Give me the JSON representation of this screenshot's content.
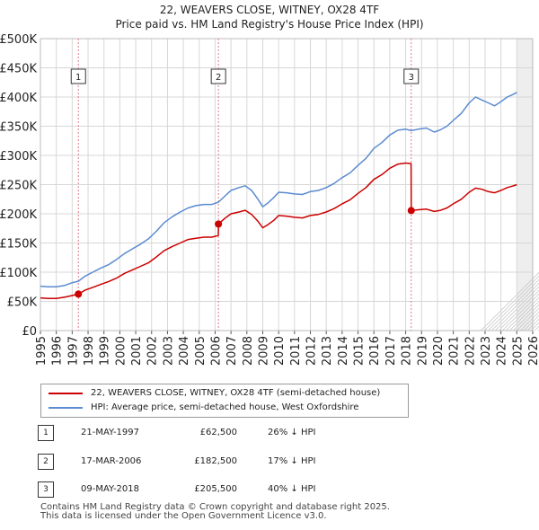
{
  "title": {
    "line1": "22, WEAVERS CLOSE, WITNEY, OX28 4TF",
    "line2": "Price paid vs. HM Land Registry's House Price Index (HPI)"
  },
  "legend": {
    "property_label": "22, WEAVERS CLOSE, WITNEY, OX28 4TF (semi-detached house)",
    "hpi_label": "HPI: Average price, semi-detached house, West Oxfordshire"
  },
  "transactions": [
    {
      "num": "1",
      "date": "21-MAY-1997",
      "price": "£62,500",
      "hpi_diff": "26% ↓ HPI"
    },
    {
      "num": "2",
      "date": "17-MAR-2006",
      "price": "£182,500",
      "hpi_diff": "17% ↓ HPI"
    },
    {
      "num": "3",
      "date": "09-MAY-2018",
      "price": "£205,500",
      "hpi_diff": "40% ↓ HPI"
    }
  ],
  "footer": {
    "line1": "Contains HM Land Registry data © Crown copyright and database right 2025.",
    "line2": "This data is licensed under the Open Government Licence v3.0."
  },
  "chart_data": {
    "type": "line",
    "title": "Price paid vs. HM Land Registry's House Price Index (HPI)",
    "xlabel": "",
    "ylabel": "",
    "xlim": [
      1995,
      2026
    ],
    "ylim": [
      0,
      500000
    ],
    "grid": true,
    "x_ticks": [
      "1995",
      "1996",
      "1997",
      "1998",
      "1999",
      "2000",
      "2001",
      "2002",
      "2003",
      "2004",
      "2005",
      "2006",
      "2007",
      "2008",
      "2009",
      "2010",
      "2011",
      "2012",
      "2013",
      "2014",
      "2015",
      "2016",
      "2017",
      "2018",
      "2019",
      "2020",
      "2021",
      "2022",
      "2023",
      "2024",
      "2025",
      "2026"
    ],
    "y_ticks": [
      {
        "value": 0,
        "label": "£0"
      },
      {
        "value": 50000,
        "label": "£50K"
      },
      {
        "value": 100000,
        "label": "£100K"
      },
      {
        "value": 150000,
        "label": "£150K"
      },
      {
        "value": 200000,
        "label": "£200K"
      },
      {
        "value": 250000,
        "label": "£250K"
      },
      {
        "value": 300000,
        "label": "£300K"
      },
      {
        "value": 350000,
        "label": "£350K"
      },
      {
        "value": 400000,
        "label": "£400K"
      },
      {
        "value": 450000,
        "label": "£450K"
      },
      {
        "value": 500000,
        "label": "£500K"
      }
    ],
    "forecast_start": 2025.0,
    "colors": {
      "property": "#cc0000",
      "hpi": "#5b8bd0",
      "marker_line": "#e07a8a",
      "grid": "#d7d7d7",
      "forecast": "#bbbbbb"
    },
    "transactions": [
      {
        "label": "1",
        "x": 1997.39,
        "y": 62500
      },
      {
        "label": "2",
        "x": 2006.21,
        "y": 182500
      },
      {
        "label": "3",
        "x": 2018.35,
        "y": 205500
      }
    ],
    "series": [
      {
        "name": "HPI: Average price, semi-detached house, West Oxfordshire",
        "x": [
          1995.0,
          1995.5,
          1996.0,
          1996.5,
          1997.0,
          1997.39,
          1997.8,
          1998.3,
          1998.8,
          1999.3,
          1999.8,
          2000.3,
          2000.8,
          2001.3,
          2001.8,
          2002.3,
          2002.8,
          2003.3,
          2003.8,
          2004.3,
          2004.8,
          2005.3,
          2005.8,
          2006.21,
          2006.6,
          2007.0,
          2007.5,
          2007.9,
          2008.3,
          2008.7,
          2009.0,
          2009.3,
          2009.7,
          2010.0,
          2010.5,
          2011.0,
          2011.5,
          2012.0,
          2012.5,
          2013.0,
          2013.5,
          2014.0,
          2014.5,
          2015.0,
          2015.5,
          2016.0,
          2016.5,
          2017.0,
          2017.5,
          2018.0,
          2018.35,
          2018.8,
          2019.3,
          2019.8,
          2020.2,
          2020.6,
          2021.0,
          2021.5,
          2022.0,
          2022.4,
          2022.8,
          2023.2,
          2023.6,
          2024.0,
          2024.4,
          2024.8,
          2025.0
        ],
        "y": [
          76000,
          75000,
          75000,
          77000,
          82000,
          84500,
          93000,
          100000,
          107000,
          113000,
          122000,
          132000,
          140000,
          148000,
          157000,
          170000,
          185000,
          195000,
          203000,
          210000,
          214000,
          216000,
          216000,
          220000,
          230000,
          240000,
          245000,
          248000,
          240000,
          225000,
          212000,
          218000,
          228000,
          237000,
          236000,
          234000,
          233000,
          238000,
          240000,
          245000,
          252000,
          262000,
          270000,
          283000,
          295000,
          312000,
          322000,
          335000,
          343000,
          345000,
          342500,
          345000,
          347000,
          340000,
          344000,
          350000,
          360000,
          372000,
          390000,
          400000,
          395000,
          390000,
          385000,
          392000,
          400000,
          405000,
          408000
        ]
      },
      {
        "name": "22, WEAVERS CLOSE, WITNEY, OX28 4TF (semi-detached house)",
        "x": [
          1995.0,
          1995.5,
          1996.0,
          1996.5,
          1997.0,
          1997.39,
          1997.8,
          1998.3,
          1998.8,
          1999.3,
          1999.8,
          2000.3,
          2000.8,
          2001.3,
          2001.8,
          2002.3,
          2002.8,
          2003.3,
          2003.8,
          2004.3,
          2004.8,
          2005.3,
          2005.8,
          2006.2,
          2006.21,
          2006.6,
          2007.0,
          2007.5,
          2007.9,
          2008.3,
          2008.7,
          2009.0,
          2009.3,
          2009.7,
          2010.0,
          2010.5,
          2011.0,
          2011.5,
          2012.0,
          2012.5,
          2013.0,
          2013.5,
          2014.0,
          2014.5,
          2015.0,
          2015.5,
          2016.0,
          2016.5,
          2017.0,
          2017.5,
          2018.0,
          2018.34,
          2018.35,
          2018.8,
          2019.3,
          2019.8,
          2020.2,
          2020.6,
          2021.0,
          2021.5,
          2022.0,
          2022.4,
          2022.8,
          2023.2,
          2023.6,
          2024.0,
          2024.4,
          2024.8,
          2025.0
        ],
        "y": [
          56000,
          55000,
          55000,
          57000,
          60000,
          62500,
          69000,
          74000,
          79000,
          84000,
          90000,
          98000,
          104000,
          110000,
          116000,
          126000,
          137000,
          144000,
          150000,
          156000,
          158000,
          160000,
          160000,
          163000,
          182500,
          192000,
          200000,
          203000,
          206000,
          199000,
          187000,
          176000,
          181000,
          189000,
          197000,
          196000,
          194000,
          193000,
          197000,
          199000,
          203000,
          209000,
          217000,
          224000,
          235000,
          245000,
          259000,
          267000,
          278000,
          285000,
          287000,
          286000,
          205500,
          207000,
          208000,
          204000,
          206000,
          210000,
          217000,
          225000,
          237000,
          244000,
          242000,
          238000,
          236000,
          240000,
          245000,
          248000,
          250000
        ]
      }
    ]
  }
}
